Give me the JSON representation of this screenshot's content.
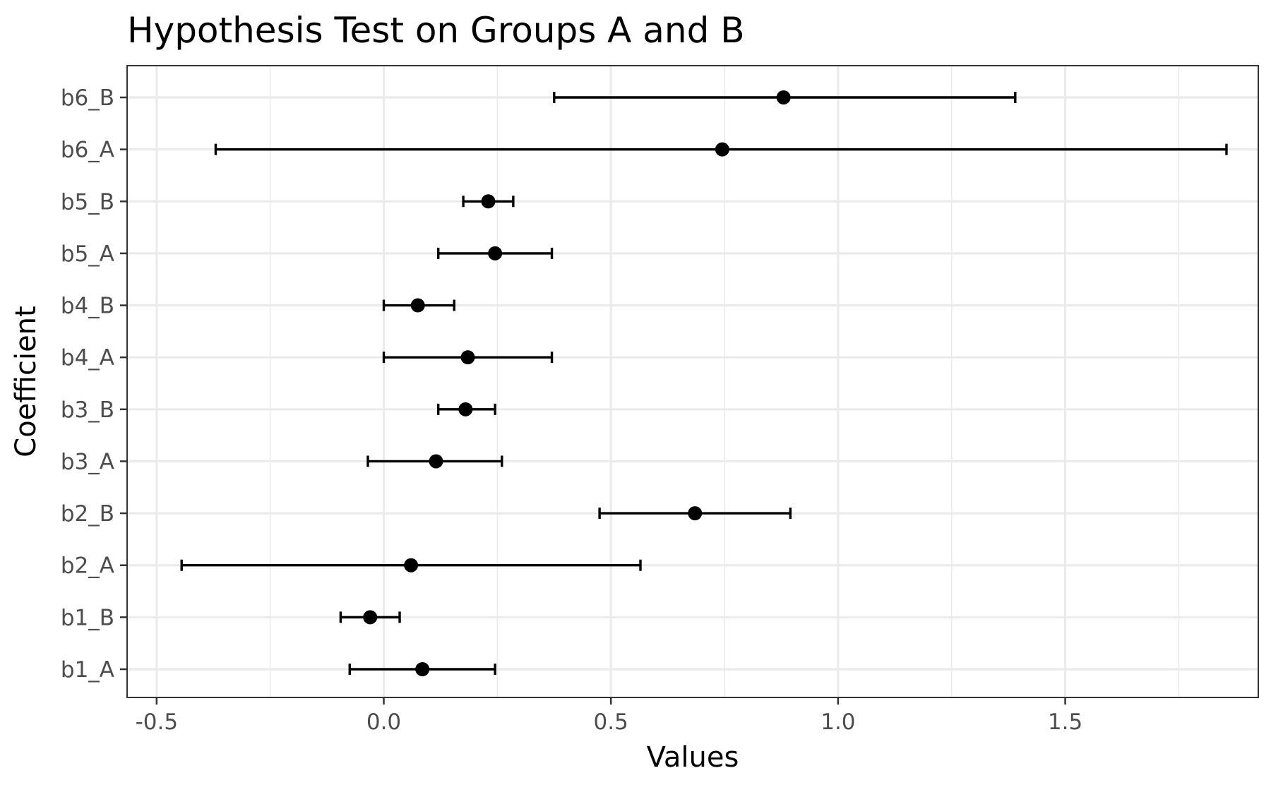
{
  "chart_data": {
    "type": "scatter",
    "subtype": "point-range (coefficient plot)",
    "title": "Hypothesis Test on Groups A and B",
    "xlabel": "Values",
    "ylabel": "Coefficient",
    "xlim": [
      -0.565,
      1.925
    ],
    "x_ticks": [
      -0.5,
      0.0,
      0.5,
      1.0,
      1.5
    ],
    "x_tick_labels": [
      "-0.5",
      "0.0",
      "0.5",
      "1.0",
      "1.5"
    ],
    "grid": true,
    "legend": "none",
    "categories": [
      "b1_A",
      "b1_B",
      "b2_A",
      "b2_B",
      "b3_A",
      "b3_B",
      "b4_A",
      "b4_B",
      "b5_A",
      "b5_B",
      "b6_A",
      "b6_B"
    ],
    "estimate": [
      0.085,
      -0.03,
      0.06,
      0.685,
      0.115,
      0.18,
      0.185,
      0.075,
      0.245,
      0.23,
      0.745,
      0.88
    ],
    "lower": [
      -0.075,
      -0.095,
      -0.445,
      0.475,
      -0.035,
      0.12,
      0.0,
      0.0,
      0.12,
      0.175,
      -0.37,
      0.375
    ],
    "upper": [
      0.245,
      0.035,
      0.565,
      0.895,
      0.26,
      0.245,
      0.37,
      0.155,
      0.37,
      0.285,
      1.855,
      1.39
    ],
    "colors": {
      "point": "#000000",
      "errorbar": "#000000",
      "grid": "#ebebeb",
      "panel_border": "#333333",
      "tick_text": "#4d4d4d"
    }
  }
}
